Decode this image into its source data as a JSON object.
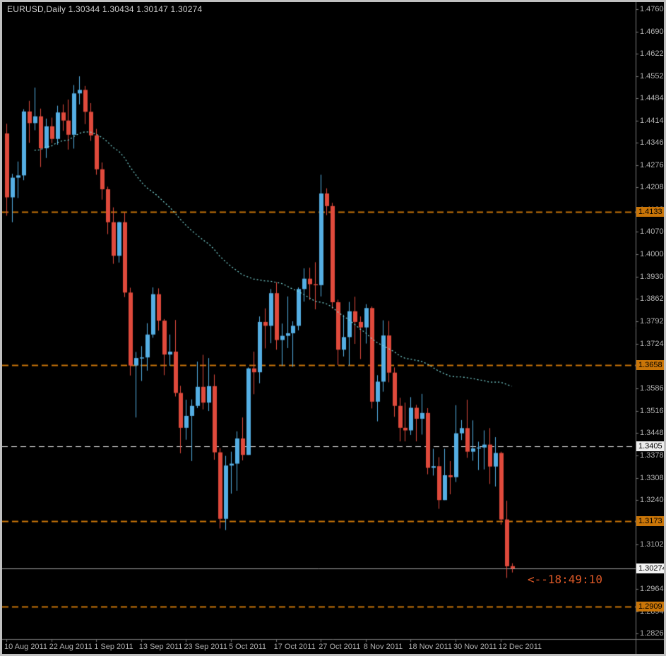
{
  "header": {
    "title": "EURUSD,Daily 1.30344 1.30434 1.30147 1.30274"
  },
  "annotation": {
    "text": "<--18:49:10",
    "color": "#E05A28"
  },
  "colors": {
    "background": "#000000",
    "bull": "#55AFE4",
    "bear": "#E04A3C",
    "moving_average": "#80E0E0",
    "axis_text": "#B0B0B0",
    "separator": "#7A7A7A",
    "title_text": "#CCCCCC",
    "current_price_line": "#A8A8A8",
    "current_price_label_bg": "#F2F2F2",
    "level_orange": "#C97508",
    "level_white": "#EDEDED"
  },
  "chart_data": {
    "type": "candlestick",
    "symbol": "EURUSD",
    "timeframe": "Daily",
    "title": "EURUSD,Daily",
    "ohlc_display": {
      "open": "1.30344",
      "high": "1.30434",
      "low": "1.30147",
      "close": "1.30274"
    },
    "ylim": [
      1.28,
      1.479
    ],
    "grid": false,
    "y_ticks": [
      "1.47600",
      "1.46900",
      "1.46220",
      "1.45520",
      "1.44840",
      "1.44140",
      "1.43460",
      "1.42760",
      "1.42080",
      "1.41380",
      "1.40700",
      "1.40000",
      "1.39300",
      "1.38620",
      "1.37920",
      "1.37240",
      "1.36540",
      "1.35860",
      "1.35160",
      "1.34480",
      "1.33780",
      "1.33080",
      "1.32400",
      "1.31700",
      "1.31020",
      "1.30320",
      "1.29640",
      "1.28940",
      "1.28260"
    ],
    "x_labels": [
      {
        "index": 0,
        "label": "10 Aug 2011"
      },
      {
        "index": 8,
        "label": "22 Aug 2011"
      },
      {
        "index": 16,
        "label": "1 Sep 2011"
      },
      {
        "index": 24,
        "label": "13 Sep 2011"
      },
      {
        "index": 32,
        "label": "23 Sep 2011"
      },
      {
        "index": 40,
        "label": "5 Oct 2011"
      },
      {
        "index": 48,
        "label": "17 Oct 2011"
      },
      {
        "index": 56,
        "label": "27 Oct 2011"
      },
      {
        "index": 64,
        "label": "8 Nov 2011"
      },
      {
        "index": 72,
        "label": "18 Nov 2011"
      },
      {
        "index": 80,
        "label": "30 Nov 2011"
      },
      {
        "index": 88,
        "label": "12 Dec 2011"
      }
    ],
    "moving_average": {
      "kind": "SMA",
      "period": 50,
      "style": "dotted"
    },
    "levels": [
      {
        "value": 1.4133,
        "label": "1.4133",
        "color": "#C97508",
        "dash": [
          9,
          5
        ],
        "width": 2
      },
      {
        "value": 1.3658,
        "label": "1.3658",
        "color": "#C97508",
        "dash": [
          9,
          5
        ],
        "width": 2
      },
      {
        "value": 1.3405,
        "label": "1.3405",
        "color": "#EDEDED",
        "dash": [
          8,
          5
        ],
        "width": 1
      },
      {
        "value": 1.3173,
        "label": "1.3173",
        "color": "#C97508",
        "dash": [
          9,
          5
        ],
        "width": 2
      },
      {
        "value": 1.2909,
        "label": "1.2909",
        "color": "#C97508",
        "dash": [
          9,
          5
        ],
        "width": 2
      }
    ],
    "current_price": {
      "value": 1.30274,
      "label": "1.30274"
    },
    "dates": [
      "2011-08-10",
      "2011-08-11",
      "2011-08-12",
      "2011-08-15",
      "2011-08-16",
      "2011-08-17",
      "2011-08-18",
      "2011-08-19",
      "2011-08-22",
      "2011-08-23",
      "2011-08-24",
      "2011-08-25",
      "2011-08-26",
      "2011-08-29",
      "2011-08-30",
      "2011-08-31",
      "2011-09-01",
      "2011-09-02",
      "2011-09-05",
      "2011-09-06",
      "2011-09-07",
      "2011-09-08",
      "2011-09-09",
      "2011-09-12",
      "2011-09-13",
      "2011-09-14",
      "2011-09-15",
      "2011-09-16",
      "2011-09-19",
      "2011-09-20",
      "2011-09-21",
      "2011-09-22",
      "2011-09-23",
      "2011-09-26",
      "2011-09-27",
      "2011-09-28",
      "2011-09-29",
      "2011-09-30",
      "2011-10-03",
      "2011-10-04",
      "2011-10-05",
      "2011-10-06",
      "2011-10-07",
      "2011-10-10",
      "2011-10-11",
      "2011-10-12",
      "2011-10-13",
      "2011-10-14",
      "2011-10-17",
      "2011-10-18",
      "2011-10-19",
      "2011-10-20",
      "2011-10-21",
      "2011-10-24",
      "2011-10-25",
      "2011-10-26",
      "2011-10-27",
      "2011-10-28",
      "2011-10-31",
      "2011-11-01",
      "2011-11-02",
      "2011-11-03",
      "2011-11-04",
      "2011-11-07",
      "2011-11-08",
      "2011-11-09",
      "2011-11-10",
      "2011-11-11",
      "2011-11-14",
      "2011-11-15",
      "2011-11-16",
      "2011-11-17",
      "2011-11-18",
      "2011-11-21",
      "2011-11-22",
      "2011-11-23",
      "2011-11-24",
      "2011-11-25",
      "2011-11-28",
      "2011-11-29",
      "2011-11-30",
      "2011-12-01",
      "2011-12-02",
      "2011-12-05",
      "2011-12-06",
      "2011-12-07",
      "2011-12-08",
      "2011-12-09",
      "2011-12-12",
      "2011-12-13",
      "2011-12-14"
    ],
    "ohlc": [
      [
        1.4375,
        1.4405,
        1.412,
        1.4177
      ],
      [
        1.4177,
        1.425,
        1.41,
        1.4238
      ],
      [
        1.4238,
        1.4288,
        1.4175,
        1.4245
      ],
      [
        1.4245,
        1.445,
        1.423,
        1.4443
      ],
      [
        1.4443,
        1.4476,
        1.4346,
        1.4407
      ],
      [
        1.4407,
        1.4517,
        1.4385,
        1.4428
      ],
      [
        1.4428,
        1.4452,
        1.4271,
        1.4329
      ],
      [
        1.4329,
        1.4421,
        1.4299,
        1.4397
      ],
      [
        1.4397,
        1.4424,
        1.4345,
        1.4358
      ],
      [
        1.4358,
        1.4461,
        1.434,
        1.444
      ],
      [
        1.444,
        1.4465,
        1.4383,
        1.4415
      ],
      [
        1.4415,
        1.448,
        1.4325,
        1.4371
      ],
      [
        1.4371,
        1.4525,
        1.4328,
        1.4499
      ],
      [
        1.4499,
        1.4552,
        1.4465,
        1.451
      ],
      [
        1.451,
        1.4522,
        1.4404,
        1.4442
      ],
      [
        1.4442,
        1.4469,
        1.4352,
        1.4369
      ],
      [
        1.4369,
        1.4389,
        1.4247,
        1.4264
      ],
      [
        1.4264,
        1.4285,
        1.417,
        1.4202
      ],
      [
        1.4202,
        1.421,
        1.4063,
        1.41
      ],
      [
        1.41,
        1.4146,
        1.3971,
        1.3996
      ],
      [
        1.3996,
        1.4102,
        1.3975,
        1.41
      ],
      [
        1.41,
        1.413,
        1.3868,
        1.3882
      ],
      [
        1.3882,
        1.3897,
        1.3625,
        1.3656
      ],
      [
        1.3656,
        1.3698,
        1.3495,
        1.3679
      ],
      [
        1.3679,
        1.3716,
        1.3608,
        1.3681
      ],
      [
        1.3681,
        1.3787,
        1.364,
        1.3752
      ],
      [
        1.3752,
        1.3898,
        1.3742,
        1.3877
      ],
      [
        1.3877,
        1.3895,
        1.3764,
        1.3795
      ],
      [
        1.3795,
        1.38,
        1.3626,
        1.369
      ],
      [
        1.369,
        1.3752,
        1.3655,
        1.3699
      ],
      [
        1.3699,
        1.3797,
        1.356,
        1.3571
      ],
      [
        1.3571,
        1.3593,
        1.3384,
        1.3463
      ],
      [
        1.3463,
        1.355,
        1.3426,
        1.35
      ],
      [
        1.35,
        1.3551,
        1.336,
        1.3531
      ],
      [
        1.3531,
        1.3668,
        1.3524,
        1.359
      ],
      [
        1.359,
        1.3689,
        1.352,
        1.3541
      ],
      [
        1.3541,
        1.3679,
        1.3515,
        1.3592
      ],
      [
        1.3592,
        1.3628,
        1.3364,
        1.3387
      ],
      [
        1.3387,
        1.34,
        1.3151,
        1.3181
      ],
      [
        1.3181,
        1.3376,
        1.3146,
        1.3346
      ],
      [
        1.3346,
        1.3389,
        1.3259,
        1.3352
      ],
      [
        1.3352,
        1.3452,
        1.3268,
        1.343
      ],
      [
        1.343,
        1.3495,
        1.3362,
        1.3379
      ],
      [
        1.3379,
        1.365,
        1.3379,
        1.3647
      ],
      [
        1.3647,
        1.3699,
        1.3567,
        1.3635
      ],
      [
        1.3635,
        1.3808,
        1.3601,
        1.3791
      ],
      [
        1.3791,
        1.3833,
        1.3709,
        1.3779
      ],
      [
        1.3779,
        1.3893,
        1.3725,
        1.388
      ],
      [
        1.388,
        1.3914,
        1.3705,
        1.3735
      ],
      [
        1.3735,
        1.3786,
        1.3655,
        1.3748
      ],
      [
        1.3748,
        1.387,
        1.371,
        1.3756
      ],
      [
        1.3756,
        1.3793,
        1.3652,
        1.3779
      ],
      [
        1.3779,
        1.3898,
        1.3765,
        1.3893
      ],
      [
        1.3893,
        1.3957,
        1.3854,
        1.3925
      ],
      [
        1.3925,
        1.3959,
        1.3859,
        1.3908
      ],
      [
        1.3908,
        1.3976,
        1.383,
        1.3905
      ],
      [
        1.3905,
        1.4247,
        1.387,
        1.4189
      ],
      [
        1.4189,
        1.4205,
        1.4122,
        1.415
      ],
      [
        1.415,
        1.416,
        1.3832,
        1.3852
      ],
      [
        1.3852,
        1.386,
        1.3657,
        1.3705
      ],
      [
        1.3705,
        1.3813,
        1.3684,
        1.3744
      ],
      [
        1.3744,
        1.3853,
        1.3656,
        1.3824
      ],
      [
        1.3824,
        1.3869,
        1.3723,
        1.3791
      ],
      [
        1.3791,
        1.3808,
        1.3676,
        1.3774
      ],
      [
        1.3774,
        1.3846,
        1.3724,
        1.3834
      ],
      [
        1.3834,
        1.3839,
        1.3523,
        1.3544
      ],
      [
        1.3544,
        1.3626,
        1.3483,
        1.3606
      ],
      [
        1.3606,
        1.3796,
        1.3575,
        1.3749
      ],
      [
        1.3749,
        1.3794,
        1.3604,
        1.3634
      ],
      [
        1.3634,
        1.365,
        1.3497,
        1.3531
      ],
      [
        1.3531,
        1.3556,
        1.3421,
        1.3463
      ],
      [
        1.3463,
        1.3541,
        1.3421,
        1.3455
      ],
      [
        1.3455,
        1.3558,
        1.3441,
        1.3525
      ],
      [
        1.3525,
        1.3534,
        1.3421,
        1.3491
      ],
      [
        1.3491,
        1.3568,
        1.3442,
        1.3509
      ],
      [
        1.3509,
        1.3524,
        1.3319,
        1.3339
      ],
      [
        1.3339,
        1.3398,
        1.3315,
        1.3344
      ],
      [
        1.3344,
        1.3372,
        1.3212,
        1.3239
      ],
      [
        1.3239,
        1.3398,
        1.3239,
        1.3316
      ],
      [
        1.3316,
        1.336,
        1.3257,
        1.331
      ],
      [
        1.331,
        1.3533,
        1.3295,
        1.3446
      ],
      [
        1.3446,
        1.3487,
        1.3425,
        1.3462
      ],
      [
        1.3462,
        1.355,
        1.337,
        1.3389
      ],
      [
        1.3389,
        1.3486,
        1.3361,
        1.3399
      ],
      [
        1.3399,
        1.342,
        1.3332,
        1.3402
      ],
      [
        1.3402,
        1.3455,
        1.3334,
        1.3411
      ],
      [
        1.3411,
        1.3462,
        1.3289,
        1.3343
      ],
      [
        1.3343,
        1.3434,
        1.3281,
        1.3385
      ],
      [
        1.3385,
        1.3389,
        1.3163,
        1.3179
      ],
      [
        1.3179,
        1.3237,
        1.2998,
        1.3034
      ],
      [
        1.30344,
        1.30434,
        1.30147,
        1.30274
      ]
    ]
  }
}
